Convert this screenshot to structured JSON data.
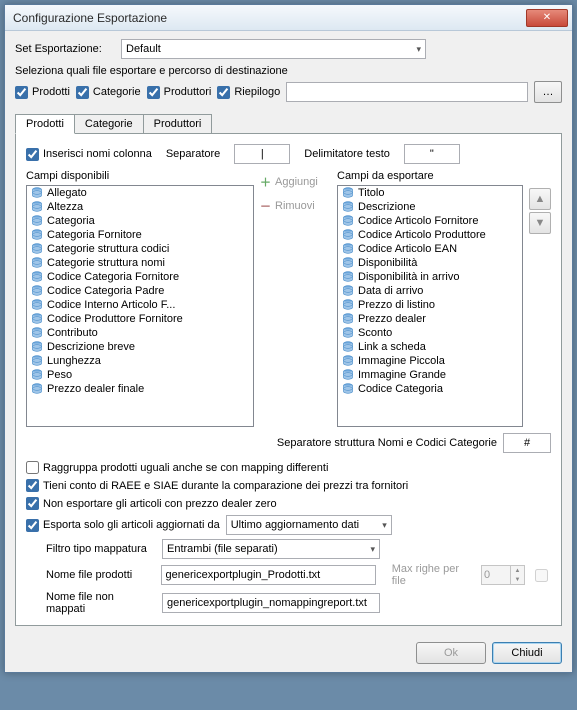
{
  "window": {
    "title": "Configurazione Esportazione"
  },
  "setEsport": {
    "label": "Set Esportazione:",
    "value": "Default"
  },
  "selectLine": {
    "label": "Seleziona quali file esportare e percorso di destinazione"
  },
  "fileChecks": {
    "prodotti": "Prodotti",
    "categorie": "Categorie",
    "produttori": "Produttori",
    "riepilogo": "Riepilogo"
  },
  "pathValue": "",
  "tabs": {
    "prodotti": "Prodotti",
    "categorie": "Categorie",
    "produttori": "Produttori"
  },
  "topOpts": {
    "insertNames": "Inserisci nomi colonna",
    "sepLabel": "Separatore",
    "sepValue": "|",
    "delimLabel": "Delimitatore testo",
    "delimValue": "\""
  },
  "available": {
    "title": "Campi disponibili",
    "items": [
      "Allegato",
      "Altezza",
      "Categoria",
      "Categoria Fornitore",
      "Categorie struttura codici",
      "Categorie struttura nomi",
      "Codice Categoria Fornitore",
      "Codice Categoria Padre",
      "Codice Interno Articolo F...",
      "Codice Produttore Fornitore",
      "Contributo",
      "Descrizione breve",
      "Lunghezza",
      "Peso",
      "Prezzo dealer finale"
    ]
  },
  "centerBtns": {
    "add": "Aggiungi",
    "remove": "Rimuovi"
  },
  "export": {
    "title": "Campi da esportare",
    "items": [
      "Titolo",
      "Descrizione",
      "Codice Articolo Fornitore",
      "Codice Articolo Produttore",
      "Codice Articolo EAN",
      "Disponibilità",
      "Disponibilità in arrivo",
      "Data di arrivo",
      "Prezzo di listino",
      "Prezzo dealer",
      "Sconto",
      "Link a scheda",
      "Immagine Piccola",
      "Immagine Grande",
      "Codice Categoria"
    ]
  },
  "structSep": {
    "label": "Separatore struttura Nomi e Codici Categorie",
    "value": "#"
  },
  "options": {
    "raggruppa": "Raggruppa prodotti uguali anche se con mapping differenti",
    "raee": "Tieni conto di RAEE e SIAE durante la comparazione dei prezzi tra fornitori",
    "noZero": "Non esportare gli articoli con prezzo dealer zero",
    "soloAgg": "Esporta solo gli articoli aggiornati da",
    "soloAggCombo": "Ultimo aggiornamento dati"
  },
  "filtro": {
    "label": "Filtro tipo mappatura",
    "value": "Entrambi (file separati)"
  },
  "nomeFile": {
    "label": "Nome file prodotti",
    "value": "genericexportplugin_Prodotti.txt"
  },
  "maxRighe": {
    "label": "Max righe per file",
    "value": "0"
  },
  "nomeNonMap": {
    "label": "Nome file non mappati",
    "value": "genericexportplugin_nomappingreport.txt"
  },
  "footer": {
    "ok": "Ok",
    "close": "Chiudi"
  }
}
